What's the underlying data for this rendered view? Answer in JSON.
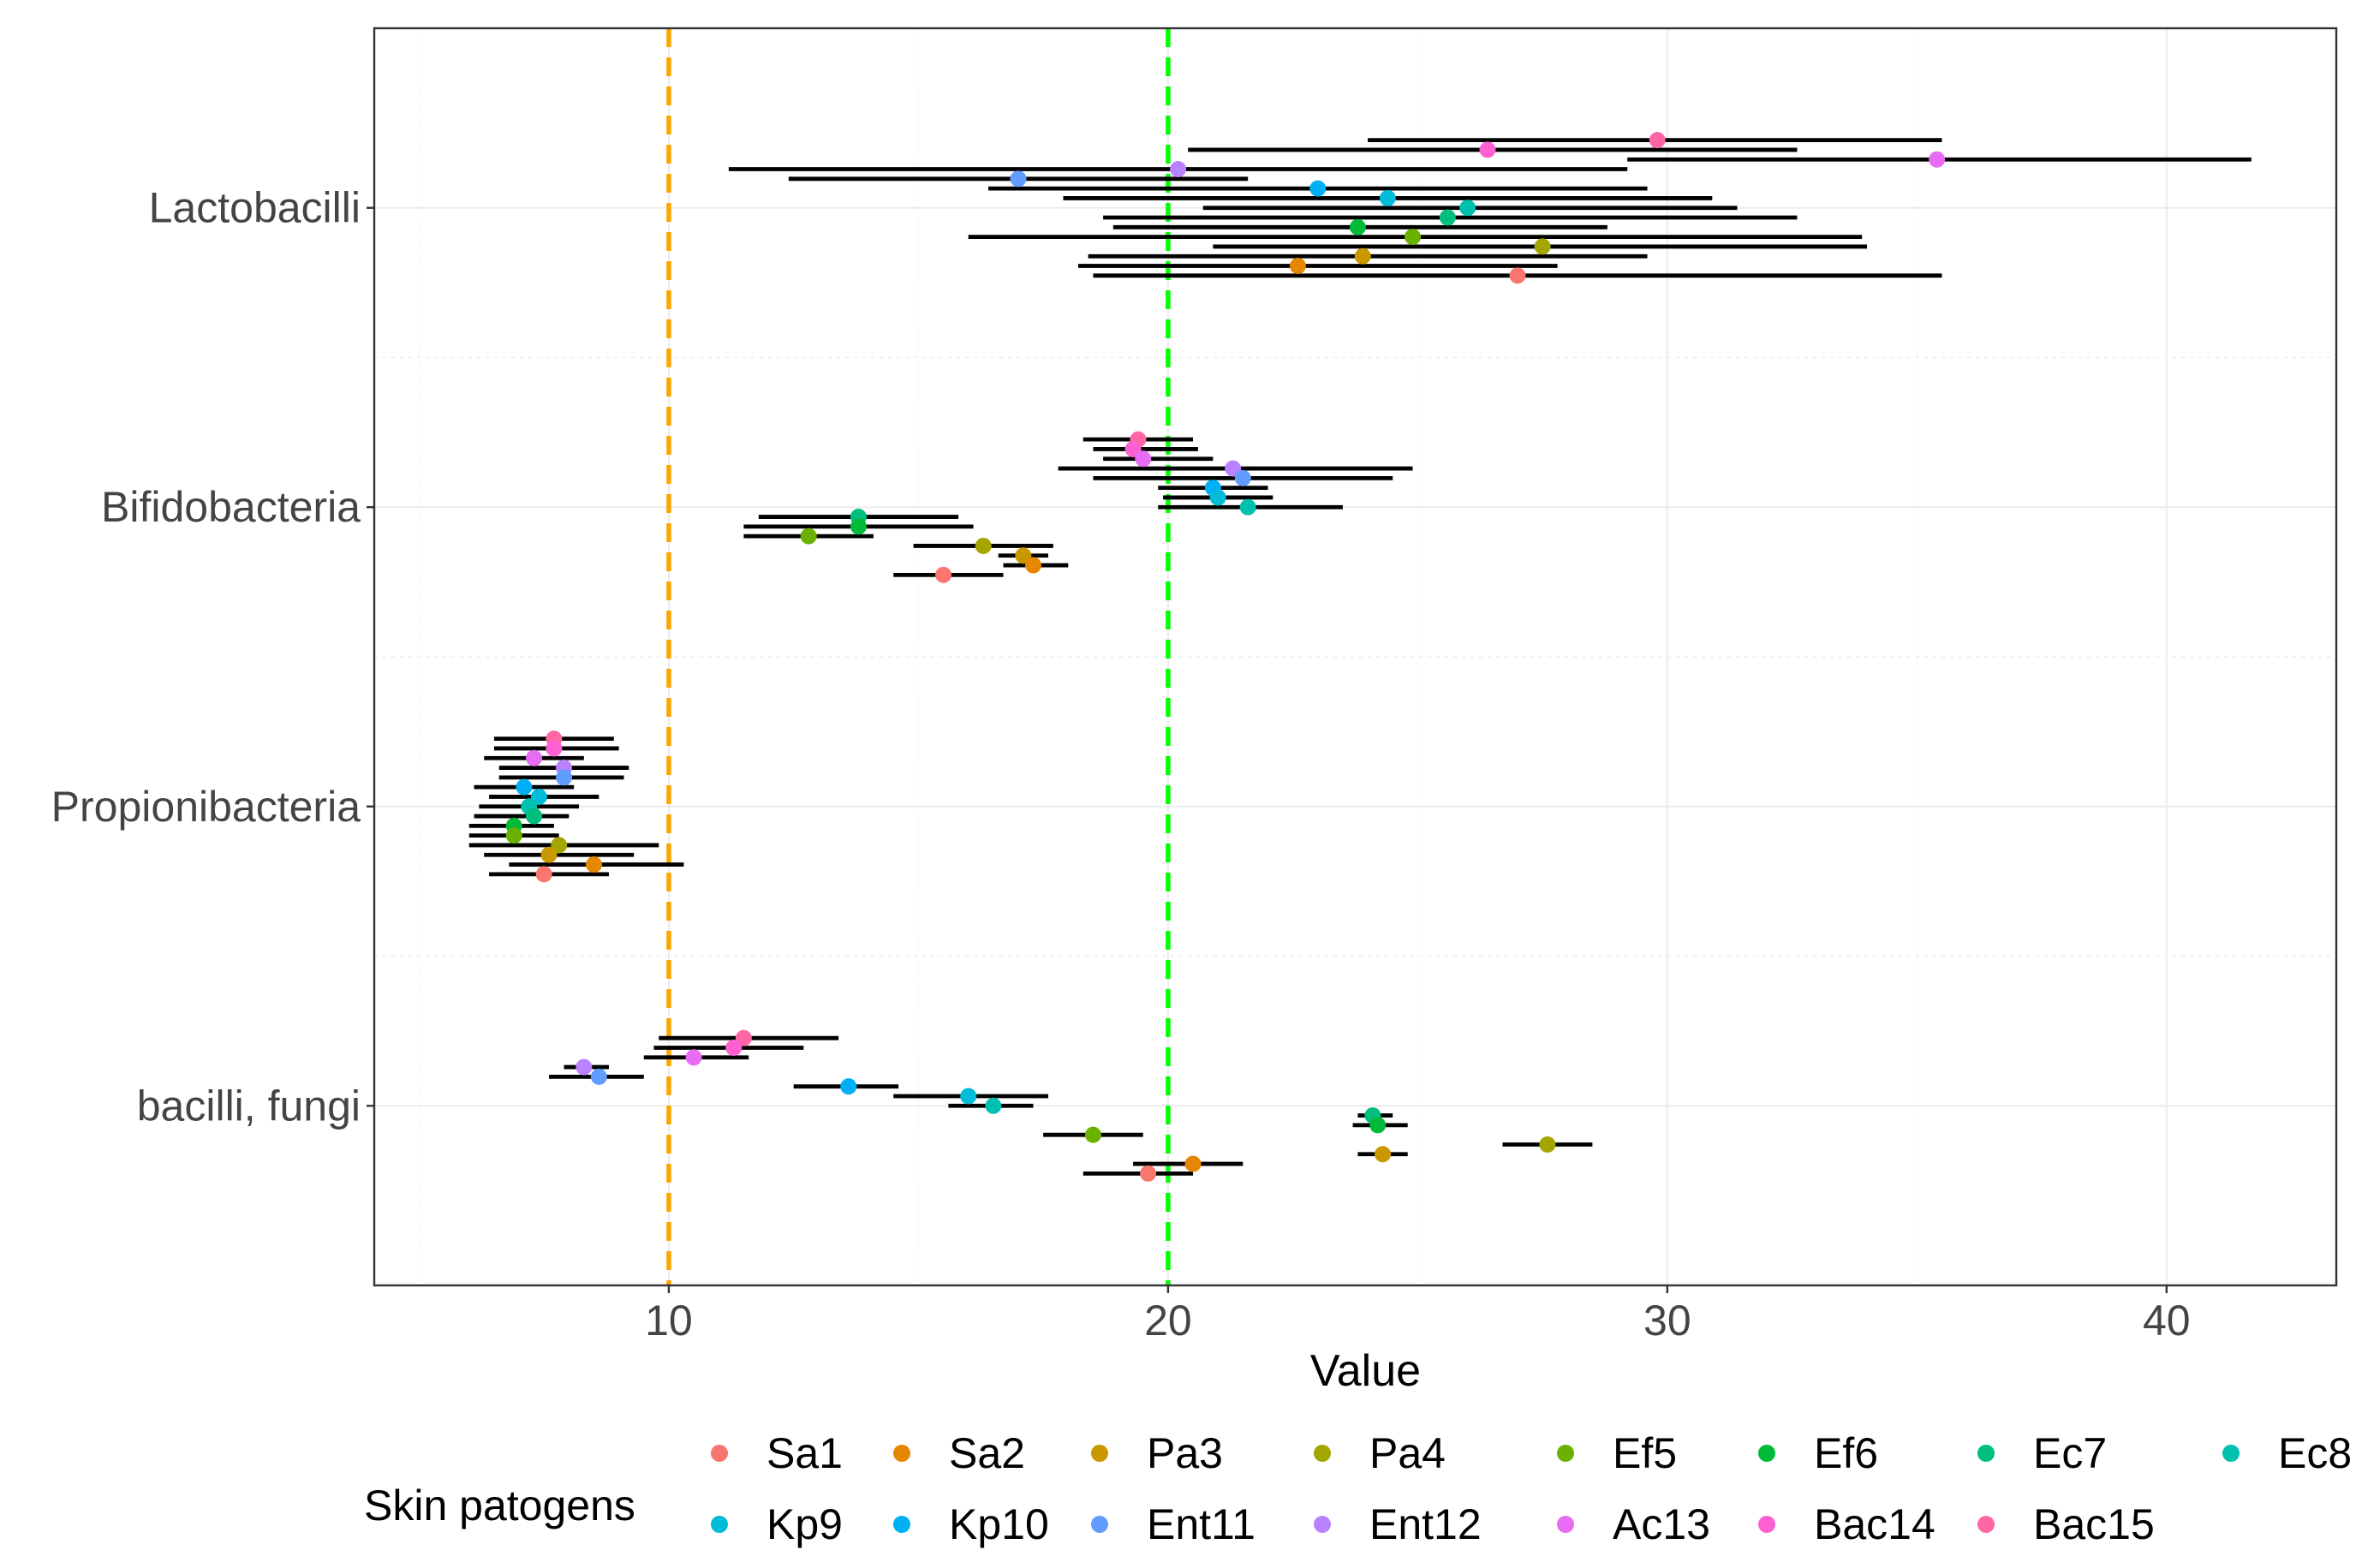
{
  "chart_data": {
    "type": "scatter",
    "subtype": "dot-with-interval",
    "title": "",
    "xlabel": "Value",
    "ylabel": "",
    "xlim": [
      4.1,
      43.4
    ],
    "x_ticks": [
      10,
      20,
      30,
      40
    ],
    "grid": true,
    "categories": [
      "Lactobacilli",
      "Bifidobacteria",
      "Propionibacteria",
      "bacilli, fungi"
    ],
    "reference_lines": [
      {
        "x": 10,
        "color": "#FFA500",
        "style": "dashed"
      },
      {
        "x": 20,
        "color": "#00FF00",
        "style": "dashed"
      }
    ],
    "legend": {
      "title": "Skin patogens",
      "position": "bottom",
      "entries": [
        {
          "label": "Sa1",
          "color": "#F8766D"
        },
        {
          "label": "Sa2",
          "color": "#E58700"
        },
        {
          "label": "Pa3",
          "color": "#C99800"
        },
        {
          "label": "Pa4",
          "color": "#A3A500"
        },
        {
          "label": "Ef5",
          "color": "#6BB100"
        },
        {
          "label": "Ef6",
          "color": "#00BA38"
        },
        {
          "label": "Ec7",
          "color": "#00BF7D"
        },
        {
          "label": "Ec8",
          "color": "#00C0AF"
        },
        {
          "label": "Kp9",
          "color": "#00BCD8"
        },
        {
          "label": "Kp10",
          "color": "#00B0F6"
        },
        {
          "label": "Ent11",
          "color": "#619CFF"
        },
        {
          "label": "Ent12",
          "color": "#B983FF"
        },
        {
          "label": "Ac13",
          "color": "#E76BF3"
        },
        {
          "label": "Bac14",
          "color": "#FD61D1"
        },
        {
          "label": "Bac15",
          "color": "#FF67A4"
        }
      ]
    },
    "series": [
      {
        "name": "Lactobacilli",
        "points": [
          {
            "pathogen": "Bac15",
            "value": 29.8,
            "low": 24.0,
            "high": 35.5
          },
          {
            "pathogen": "Bac14",
            "value": 26.4,
            "low": 20.4,
            "high": 32.6
          },
          {
            "pathogen": "Ac13",
            "value": 35.4,
            "low": 29.2,
            "high": 41.7
          },
          {
            "pathogen": "Ent12",
            "value": 20.2,
            "low": 11.2,
            "high": 29.2
          },
          {
            "pathogen": "Ent11",
            "value": 17.0,
            "low": 12.4,
            "high": 21.6
          },
          {
            "pathogen": "Kp10",
            "value": 23.0,
            "low": 16.4,
            "high": 29.6
          },
          {
            "pathogen": "Kp9",
            "value": 24.4,
            "low": 17.9,
            "high": 30.9
          },
          {
            "pathogen": "Ec8",
            "value": 26.0,
            "low": 20.7,
            "high": 31.4
          },
          {
            "pathogen": "Ec7",
            "value": 25.6,
            "low": 18.7,
            "high": 32.6
          },
          {
            "pathogen": "Ef6",
            "value": 23.8,
            "low": 18.9,
            "high": 28.8
          },
          {
            "pathogen": "Ef5",
            "value": 24.9,
            "low": 16.0,
            "high": 33.9
          },
          {
            "pathogen": "Pa4",
            "value": 27.5,
            "low": 20.9,
            "high": 34.0
          },
          {
            "pathogen": "Pa3",
            "value": 23.9,
            "low": 18.4,
            "high": 29.6
          },
          {
            "pathogen": "Sa2",
            "value": 22.6,
            "low": 18.2,
            "high": 27.8
          },
          {
            "pathogen": "Sa1",
            "value": 27.0,
            "low": 18.5,
            "high": 35.5
          }
        ]
      },
      {
        "name": "Bifidobacteria",
        "points": [
          {
            "pathogen": "Bac15",
            "value": 19.4,
            "low": 18.3,
            "high": 20.5
          },
          {
            "pathogen": "Bac14",
            "value": 19.3,
            "low": 18.5,
            "high": 20.6
          },
          {
            "pathogen": "Ac13",
            "value": 19.5,
            "low": 18.7,
            "high": 20.9
          },
          {
            "pathogen": "Ent12",
            "value": 21.3,
            "low": 17.8,
            "high": 24.9
          },
          {
            "pathogen": "Ent11",
            "value": 21.5,
            "low": 18.5,
            "high": 24.5
          },
          {
            "pathogen": "Kp10",
            "value": 20.9,
            "low": 19.8,
            "high": 22.0
          },
          {
            "pathogen": "Kp9",
            "value": 21.0,
            "low": 19.9,
            "high": 22.1
          },
          {
            "pathogen": "Ec8",
            "value": 21.6,
            "low": 19.8,
            "high": 23.5
          },
          {
            "pathogen": "Ec7",
            "value": 13.8,
            "low": 11.8,
            "high": 15.8
          },
          {
            "pathogen": "Ef6",
            "value": 13.8,
            "low": 11.5,
            "high": 16.1
          },
          {
            "pathogen": "Ef5",
            "value": 12.8,
            "low": 11.5,
            "high": 14.1
          },
          {
            "pathogen": "Pa4",
            "value": 16.3,
            "low": 14.9,
            "high": 17.7
          },
          {
            "pathogen": "Pa3",
            "value": 17.1,
            "low": 16.6,
            "high": 17.6
          },
          {
            "pathogen": "Sa2",
            "value": 17.3,
            "low": 16.7,
            "high": 18.0
          },
          {
            "pathogen": "Sa1",
            "value": 15.5,
            "low": 14.5,
            "high": 16.7
          }
        ]
      },
      {
        "name": "Propionibacteria",
        "points": [
          {
            "pathogen": "Bac15",
            "value": 7.7,
            "low": 6.5,
            "high": 8.9
          },
          {
            "pathogen": "Bac14",
            "value": 7.7,
            "low": 6.5,
            "high": 9.0
          },
          {
            "pathogen": "Ac13",
            "value": 7.3,
            "low": 6.3,
            "high": 8.3
          },
          {
            "pathogen": "Ent12",
            "value": 7.9,
            "low": 6.6,
            "high": 9.2
          },
          {
            "pathogen": "Ent11",
            "value": 7.9,
            "low": 6.6,
            "high": 9.1
          },
          {
            "pathogen": "Kp10",
            "value": 7.1,
            "low": 6.1,
            "high": 8.1
          },
          {
            "pathogen": "Kp9",
            "value": 7.4,
            "low": 6.4,
            "high": 8.6
          },
          {
            "pathogen": "Ec8",
            "value": 7.2,
            "low": 6.2,
            "high": 8.2
          },
          {
            "pathogen": "Ec7",
            "value": 7.3,
            "low": 6.1,
            "high": 8.0
          },
          {
            "pathogen": "Ef6",
            "value": 6.9,
            "low": 6.0,
            "high": 7.7
          },
          {
            "pathogen": "Ef5",
            "value": 6.9,
            "low": 6.0,
            "high": 7.8
          },
          {
            "pathogen": "Pa4",
            "value": 7.8,
            "low": 6.0,
            "high": 9.8
          },
          {
            "pathogen": "Pa3",
            "value": 7.6,
            "low": 6.3,
            "high": 9.3
          },
          {
            "pathogen": "Sa2",
            "value": 8.5,
            "low": 6.8,
            "high": 10.3
          },
          {
            "pathogen": "Sa1",
            "value": 7.5,
            "low": 6.4,
            "high": 8.8
          }
        ]
      },
      {
        "name": "bacilli, fungi",
        "points": [
          {
            "pathogen": "Bac15",
            "value": 11.5,
            "low": 9.8,
            "high": 13.4
          },
          {
            "pathogen": "Bac14",
            "value": 11.3,
            "low": 9.7,
            "high": 12.7
          },
          {
            "pathogen": "Ac13",
            "value": 10.5,
            "low": 9.5,
            "high": 11.6
          },
          {
            "pathogen": "Ent12",
            "value": 8.3,
            "low": 7.9,
            "high": 8.8
          },
          {
            "pathogen": "Ent11",
            "value": 8.6,
            "low": 7.6,
            "high": 9.5
          },
          {
            "pathogen": "Kp10",
            "value": 13.6,
            "low": 12.5,
            "high": 14.6
          },
          {
            "pathogen": "Kp9",
            "value": 16.0,
            "low": 14.5,
            "high": 17.6
          },
          {
            "pathogen": "Ec8",
            "value": 16.5,
            "low": 15.6,
            "high": 17.3
          },
          {
            "pathogen": "Ec7",
            "value": 24.1,
            "low": 23.8,
            "high": 24.5
          },
          {
            "pathogen": "Ef6",
            "value": 24.2,
            "low": 23.7,
            "high": 24.8
          },
          {
            "pathogen": "Ef5",
            "value": 18.5,
            "low": 17.5,
            "high": 19.5
          },
          {
            "pathogen": "Pa4",
            "value": 27.6,
            "low": 26.7,
            "high": 28.5
          },
          {
            "pathogen": "Pa3",
            "value": 24.3,
            "low": 23.8,
            "high": 24.8
          },
          {
            "pathogen": "Sa2",
            "value": 20.5,
            "low": 19.3,
            "high": 21.5
          },
          {
            "pathogen": "Sa1",
            "value": 19.6,
            "low": 18.3,
            "high": 20.5
          }
        ]
      }
    ]
  }
}
